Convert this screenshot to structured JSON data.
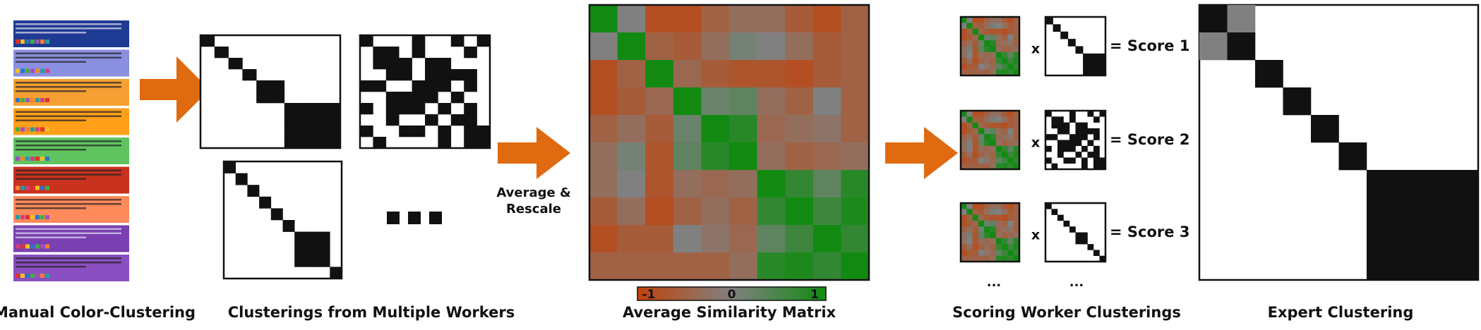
{
  "labels": {
    "manual": "Manual Color-Clustering",
    "workers": "Clusterings from Multiple Workers",
    "average": "Average Similarity Matrix",
    "scoring": "Scoring Worker Clusterings",
    "expert": "Expert Clustering"
  },
  "average_rescale": [
    "Average &",
    "Rescale"
  ],
  "colorbar": {
    "ticks": [
      -1,
      0,
      1
    ]
  },
  "similarity_matrix": [
    [
      1,
      0,
      -0.8,
      -0.8,
      -0.5,
      -0.3,
      -0.3,
      -0.6,
      -0.8,
      -0.5
    ],
    [
      0,
      1,
      -0.5,
      -0.6,
      -0.3,
      0.1,
      0,
      -0.3,
      -0.6,
      -0.5
    ],
    [
      -0.8,
      -0.5,
      1,
      -0.4,
      -0.6,
      -0.7,
      -0.7,
      -0.8,
      -0.6,
      -0.5
    ],
    [
      -0.8,
      -0.6,
      -0.4,
      1,
      0.2,
      0.3,
      -0.3,
      -0.5,
      0,
      -0.5
    ],
    [
      -0.5,
      -0.3,
      -0.6,
      0.2,
      1,
      0.8,
      -0.4,
      -0.3,
      -0.2,
      -0.5
    ],
    [
      -0.3,
      0.1,
      -0.7,
      0.3,
      0.8,
      1,
      -0.3,
      -0.5,
      -0.4,
      -0.3
    ],
    [
      -0.3,
      0,
      -0.7,
      -0.3,
      -0.4,
      -0.3,
      1,
      0.7,
      0.3,
      0.8
    ],
    [
      -0.6,
      -0.3,
      -0.8,
      -0.5,
      -0.3,
      -0.5,
      0.7,
      1,
      0.6,
      0.9
    ],
    [
      -0.8,
      -0.6,
      -0.6,
      0,
      -0.2,
      -0.4,
      0.3,
      0.6,
      1,
      0.7
    ],
    [
      -0.5,
      -0.5,
      -0.5,
      -0.5,
      -0.5,
      -0.3,
      0.8,
      0.9,
      0.7,
      1
    ]
  ],
  "scoring": [
    {
      "operator": "x",
      "result": "= Score 1"
    },
    {
      "operator": "x",
      "result": "= Score 2"
    },
    {
      "operator": "x",
      "result": "= Score 3"
    }
  ],
  "scoring_ellipsis": [
    "...",
    "..."
  ]
}
